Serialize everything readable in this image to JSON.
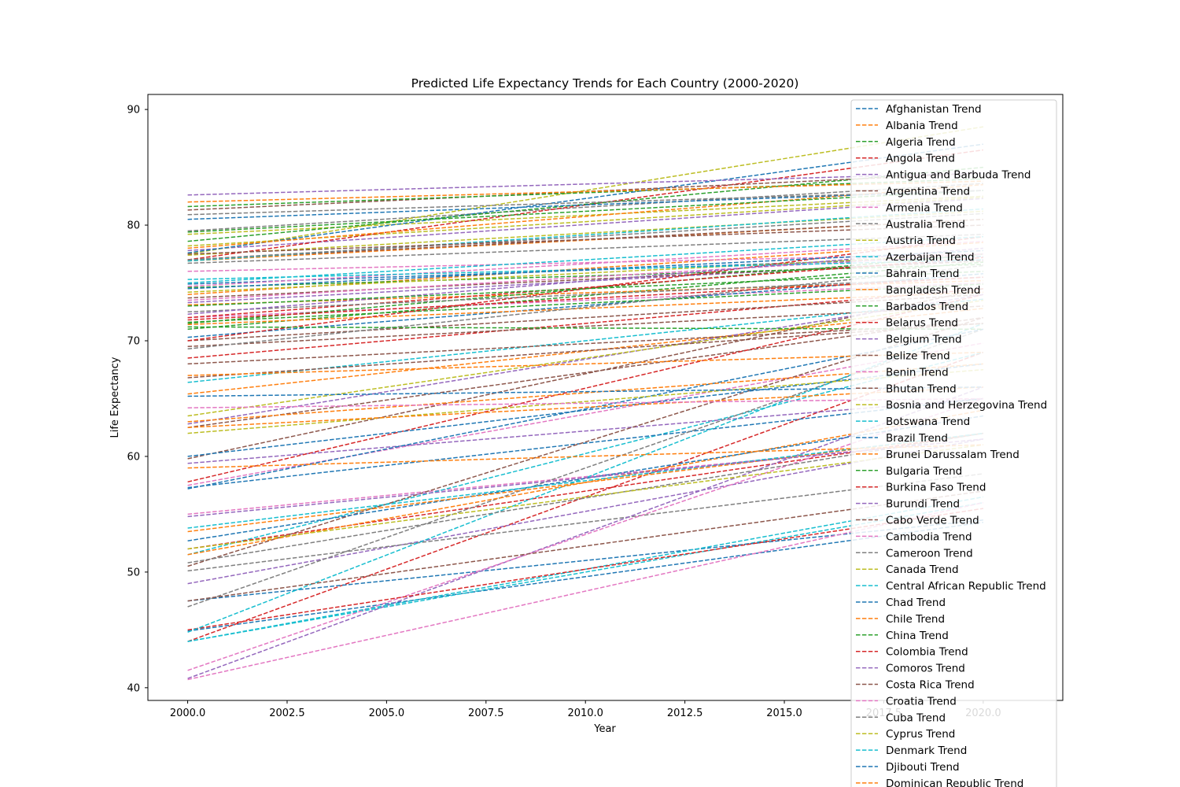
{
  "chart_data": {
    "type": "line",
    "title": "Predicted Life Expectancy Trends for Each Country (2000-2020)",
    "xlabel": "Year",
    "ylabel": "Life Expectancy",
    "xlim": [
      1999.0,
      2022.0
    ],
    "ylim": [
      38.9,
      91.3
    ],
    "x_ticks": [
      "2000.0",
      "2002.5",
      "2005.0",
      "2007.5",
      "2010.0",
      "2012.5",
      "2015.0",
      "2017.5",
      "2020.0"
    ],
    "y_ticks": [
      "40",
      "50",
      "60",
      "70",
      "80",
      "90"
    ],
    "grid": false,
    "legend_position": "upper-right",
    "line_style": "dashed",
    "x": [
      2000,
      2020
    ],
    "series": [
      {
        "name": "Afghanistan Trend",
        "values": [
          44.9,
          54.3
        ],
        "color": "#1f77b4"
      },
      {
        "name": "Albania Trend",
        "values": [
          74.0,
          78.5
        ],
        "color": "#ff7f0e"
      },
      {
        "name": "Algeria Trend",
        "values": [
          71.0,
          76.8
        ],
        "color": "#2ca02c"
      },
      {
        "name": "Angola Trend",
        "values": [
          44.0,
          69.0
        ],
        "color": "#d62728"
      },
      {
        "name": "Antigua and Barbuda Trend",
        "values": [
          73.3,
          77.0
        ],
        "color": "#9467bd"
      },
      {
        "name": "Argentina Trend",
        "values": [
          73.7,
          76.9
        ],
        "color": "#8c564b"
      },
      {
        "name": "Armenia Trend",
        "values": [
          72.0,
          75.0
        ],
        "color": "#e377c2"
      },
      {
        "name": "Australia Trend",
        "values": [
          79.5,
          83.6
        ],
        "color": "#7f7f7f"
      },
      {
        "name": "Austria Trend",
        "values": [
          78.2,
          82.4
        ],
        "color": "#bcbd22"
      },
      {
        "name": "Azerbaijan Trend",
        "values": [
          66.4,
          73.6
        ],
        "color": "#17becf"
      },
      {
        "name": "Bahrain Trend",
        "values": [
          74.9,
          77.3
        ],
        "color": "#1f77b4"
      },
      {
        "name": "Bangladesh Trend",
        "values": [
          65.4,
          72.8
        ],
        "color": "#ff7f0e"
      },
      {
        "name": "Barbados Trend",
        "values": [
          74.6,
          76.6
        ],
        "color": "#2ca02c"
      },
      {
        "name": "Belarus Trend",
        "values": [
          68.5,
          74.5
        ],
        "color": "#d62728"
      },
      {
        "name": "Belgium Trend",
        "values": [
          77.8,
          82.3
        ],
        "color": "#9467bd"
      },
      {
        "name": "Belize Trend",
        "values": [
          70.0,
          74.0
        ],
        "color": "#8c564b"
      },
      {
        "name": "Benin Trend",
        "values": [
          55.0,
          61.5
        ],
        "color": "#e377c2"
      },
      {
        "name": "Bhutan Trend",
        "values": [
          62.5,
          72.0
        ],
        "color": "#8c564b"
      },
      {
        "name": "Bosnia and Herzegovina Trend",
        "values": [
          74.2,
          77.5
        ],
        "color": "#bcbd22"
      },
      {
        "name": "Botswana Trend",
        "values": [
          51.5,
          69.0
        ],
        "color": "#17becf"
      },
      {
        "name": "Brazil Trend",
        "values": [
          70.3,
          75.8
        ],
        "color": "#1f77b4"
      },
      {
        "name": "Brunei Darussalam Trend",
        "values": [
          73.1,
          75.2
        ],
        "color": "#ff7f0e"
      },
      {
        "name": "Bulgaria Trend",
        "values": [
          71.6,
          74.9
        ],
        "color": "#2ca02c"
      },
      {
        "name": "Burkina Faso Trend",
        "values": [
          52.0,
          62.0
        ],
        "color": "#d62728"
      },
      {
        "name": "Burundi Trend",
        "values": [
          49.0,
          61.5
        ],
        "color": "#9467bd"
      },
      {
        "name": "Cabo Verde Trend",
        "values": [
          69.5,
          73.0
        ],
        "color": "#8c564b"
      },
      {
        "name": "Cambodia Trend",
        "values": [
          57.5,
          69.8
        ],
        "color": "#e377c2"
      },
      {
        "name": "Cameroon Trend",
        "values": [
          50.1,
          58.5
        ],
        "color": "#7f7f7f"
      },
      {
        "name": "Canada Trend",
        "values": [
          79.2,
          82.5
        ],
        "color": "#bcbd22"
      },
      {
        "name": "Central African Republic Trend",
        "values": [
          44.0,
          56.0
        ],
        "color": "#17becf"
      },
      {
        "name": "Chad Trend",
        "values": [
          47.5,
          54.5
        ],
        "color": "#1f77b4"
      },
      {
        "name": "Chile Trend",
        "values": [
          76.9,
          80.5
        ],
        "color": "#ff7f0e"
      },
      {
        "name": "China Trend",
        "values": [
          71.5,
          77.5
        ],
        "color": "#2ca02c"
      },
      {
        "name": "Colombia Trend",
        "values": [
          72.0,
          77.2
        ],
        "color": "#d62728"
      },
      {
        "name": "Comoros Trend",
        "values": [
          59.4,
          65.0
        ],
        "color": "#9467bd"
      },
      {
        "name": "Costa Rica Trend",
        "values": [
          77.0,
          80.5
        ],
        "color": "#8c564b"
      },
      {
        "name": "Croatia Trend",
        "values": [
          74.7,
          78.6
        ],
        "color": "#e377c2"
      },
      {
        "name": "Cuba Trend",
        "values": [
          76.7,
          79.2
        ],
        "color": "#7f7f7f"
      },
      {
        "name": "Cyprus Trend",
        "values": [
          77.4,
          81.2
        ],
        "color": "#bcbd22"
      },
      {
        "name": "Denmark Trend",
        "values": [
          76.9,
          81.4
        ],
        "color": "#17becf"
      },
      {
        "name": "Djibouti Trend",
        "values": [
          57.3,
          65.0
        ],
        "color": "#1f77b4"
      },
      {
        "name": "Dominican Republic Trend",
        "values": [
          71.4,
          74.2
        ],
        "color": "#ff7f0e"
      },
      {
        "name": "",
        "values": [
          40.8,
          66.0
        ],
        "color": "#9467bd"
      },
      {
        "name": "",
        "values": [
          41.5,
          65.0
        ],
        "color": "#e377c2"
      },
      {
        "name": "",
        "values": [
          40.7,
          56.0
        ],
        "color": "#e377c2"
      },
      {
        "name": "",
        "values": [
          44.0,
          56.5
        ],
        "color": "#17becf"
      },
      {
        "name": "",
        "values": [
          45.0,
          55.5
        ],
        "color": "#d62728"
      },
      {
        "name": "",
        "values": [
          47.0,
          71.0
        ],
        "color": "#7f7f7f"
      },
      {
        "name": "",
        "values": [
          44.8,
          71.5
        ],
        "color": "#17becf"
      },
      {
        "name": "",
        "values": [
          47.5,
          57.0
        ],
        "color": "#8c564b"
      },
      {
        "name": "",
        "values": [
          50.5,
          72.0
        ],
        "color": "#8c564b"
      },
      {
        "name": "",
        "values": [
          50.8,
          62.0
        ],
        "color": "#7f7f7f"
      },
      {
        "name": "",
        "values": [
          51.5,
          64.0
        ],
        "color": "#ff7f0e"
      },
      {
        "name": "",
        "values": [
          52.0,
          61.0
        ],
        "color": "#bcbd22"
      },
      {
        "name": "",
        "values": [
          52.7,
          63.5
        ],
        "color": "#1f77b4"
      },
      {
        "name": "",
        "values": [
          53.5,
          62.0
        ],
        "color": "#ff7f0e"
      },
      {
        "name": "",
        "values": [
          53.8,
          62.0
        ],
        "color": "#17becf"
      },
      {
        "name": "",
        "values": [
          54.8,
          61.5
        ],
        "color": "#9467bd"
      },
      {
        "name": "",
        "values": [
          57.2,
          71.0
        ],
        "color": "#1f77b4"
      },
      {
        "name": "",
        "values": [
          57.8,
          74.0
        ],
        "color": "#d62728"
      },
      {
        "name": "",
        "values": [
          59.0,
          61.0
        ],
        "color": "#ff7f0e"
      },
      {
        "name": "",
        "values": [
          59.8,
          74.5
        ],
        "color": "#8c564b"
      },
      {
        "name": "",
        "values": [
          60.0,
          68.0
        ],
        "color": "#1f77b4"
      },
      {
        "name": "",
        "values": [
          62.0,
          67.5
        ],
        "color": "#bcbd22"
      },
      {
        "name": "",
        "values": [
          62.5,
          66.0
        ],
        "color": "#ff7f0e"
      },
      {
        "name": "",
        "values": [
          62.8,
          74.0
        ],
        "color": "#9467bd"
      },
      {
        "name": "",
        "values": [
          63.0,
          68.0
        ],
        "color": "#ff7f0e"
      },
      {
        "name": "",
        "values": [
          63.5,
          73.5
        ],
        "color": "#bcbd22"
      },
      {
        "name": "",
        "values": [
          64.2,
          65.0
        ],
        "color": "#e377c2"
      },
      {
        "name": "",
        "values": [
          65.2,
          66.0
        ],
        "color": "#1f77b4"
      },
      {
        "name": "",
        "values": [
          66.8,
          71.5
        ],
        "color": "#8c564b"
      },
      {
        "name": "",
        "values": [
          67.0,
          69.0
        ],
        "color": "#ff7f0e"
      },
      {
        "name": "",
        "values": [
          68.0,
          71.5
        ],
        "color": "#8c564b"
      },
      {
        "name": "",
        "values": [
          69.3,
          76.5
        ],
        "color": "#7f7f7f"
      },
      {
        "name": "",
        "values": [
          70.0,
          79.0
        ],
        "color": "#d62728"
      },
      {
        "name": "",
        "values": [
          71.2,
          71.0
        ],
        "color": "#2ca02c"
      },
      {
        "name": "",
        "values": [
          72.5,
          75.5
        ],
        "color": "#7f7f7f"
      },
      {
        "name": "",
        "values": [
          73.5,
          77.5
        ],
        "color": "#e377c2"
      },
      {
        "name": "",
        "values": [
          75.3,
          77.0
        ],
        "color": "#17becf"
      },
      {
        "name": "",
        "values": [
          76.0,
          77.5
        ],
        "color": "#e377c2"
      },
      {
        "name": "",
        "values": [
          77.5,
          88.5
        ],
        "color": "#bcbd22"
      },
      {
        "name": "",
        "values": [
          77.6,
          87.0
        ],
        "color": "#1f77b4"
      },
      {
        "name": "",
        "values": [
          77.0,
          86.5
        ],
        "color": "#d62728"
      },
      {
        "name": "",
        "values": [
          78.6,
          85.0
        ],
        "color": "#2ca02c"
      },
      {
        "name": "",
        "values": [
          78.0,
          83.5
        ],
        "color": "#ff7f0e"
      },
      {
        "name": "",
        "values": [
          79.4,
          83.0
        ],
        "color": "#2ca02c"
      },
      {
        "name": "",
        "values": [
          80.5,
          83.0
        ],
        "color": "#1f77b4"
      },
      {
        "name": "",
        "values": [
          80.9,
          83.0
        ],
        "color": "#7f7f7f"
      },
      {
        "name": "",
        "values": [
          81.3,
          84.5
        ],
        "color": "#8c564b"
      },
      {
        "name": "",
        "values": [
          81.6,
          84.0
        ],
        "color": "#2ca02c"
      },
      {
        "name": "",
        "values": [
          82.0,
          83.8
        ],
        "color": "#ff7f0e"
      },
      {
        "name": "",
        "values": [
          82.6,
          84.5
        ],
        "color": "#9467bd"
      },
      {
        "name": "",
        "values": [
          77.0,
          81.0
        ],
        "color": "#7f7f7f"
      },
      {
        "name": "",
        "values": [
          77.5,
          80.0
        ],
        "color": "#8c564b"
      },
      {
        "name": "",
        "values": [
          72.3,
          78.0
        ],
        "color": "#9467bd"
      },
      {
        "name": "",
        "values": [
          73.0,
          76.0
        ],
        "color": "#2ca02c"
      },
      {
        "name": "",
        "values": [
          71.8,
          75.5
        ],
        "color": "#d62728"
      },
      {
        "name": "",
        "values": [
          74.5,
          77.8
        ],
        "color": "#1f77b4"
      },
      {
        "name": "",
        "values": [
          75.0,
          79.0
        ],
        "color": "#17becf"
      }
    ]
  }
}
